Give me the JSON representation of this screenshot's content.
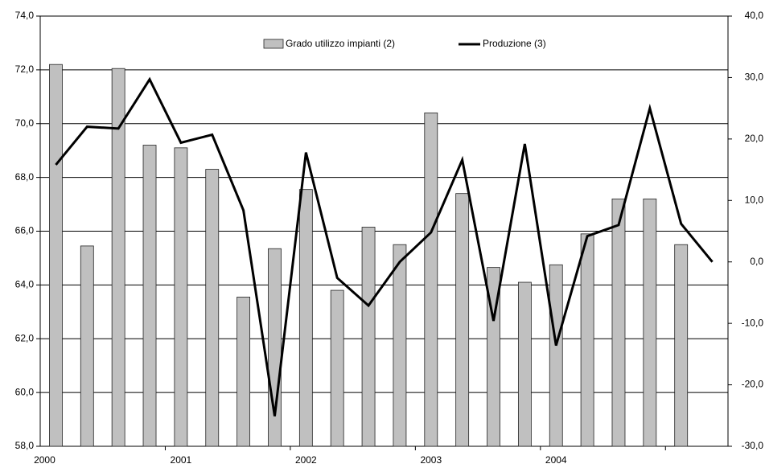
{
  "chart_data": {
    "type": "bar-line",
    "categories": [
      "2000",
      null,
      null,
      null,
      "2001",
      null,
      null,
      null,
      "2002",
      null,
      null,
      null,
      "2003",
      null,
      null,
      null,
      "2004",
      null,
      null,
      null,
      null,
      null
    ],
    "series": [
      {
        "name": "Grado utilizzo impianti (2)",
        "color": "#c0c0c0",
        "type": "bar",
        "values": [
          72.2,
          65.45,
          72.05,
          69.2,
          69.1,
          68.3,
          63.55,
          65.35,
          67.55,
          63.8,
          66.15,
          65.5,
          70.4,
          67.4,
          64.65,
          64.1,
          64.75,
          65.9,
          67.2,
          67.2,
          65.5,
          null
        ]
      },
      {
        "name": "Produzione (3)",
        "color": "#000000",
        "type": "line",
        "axis": "y2",
        "values": [
          15.8,
          22.0,
          21.7,
          29.7,
          19.4,
          20.7,
          8.4,
          -25.1,
          17.8,
          -2.6,
          -7.1,
          0.0,
          4.8,
          16.6,
          -9.6,
          19.2,
          -13.6,
          4.2,
          6.0,
          25.0,
          6.2,
          0.0
        ]
      }
    ],
    "ylim": [
      58,
      74
    ],
    "yticks": [
      {
        "value": 58,
        "label": "58,0"
      },
      {
        "value": 60,
        "label": "60,0"
      },
      {
        "value": 62,
        "label": "62,0"
      },
      {
        "value": 64,
        "label": "64,0"
      },
      {
        "value": 66,
        "label": "66,0"
      },
      {
        "value": 68,
        "label": "68,0"
      },
      {
        "value": 70,
        "label": "70,0"
      },
      {
        "value": 72,
        "label": "72,0"
      },
      {
        "value": 74,
        "label": "74,0"
      }
    ],
    "y2lim": [
      -30,
      40
    ],
    "y2ticks": [
      {
        "value": -30,
        "label": "-30,0"
      },
      {
        "value": -20,
        "label": "-20,0"
      },
      {
        "value": -10,
        "label": "-10,0"
      },
      {
        "value": 0,
        "label": "0,0"
      },
      {
        "value": 10,
        "label": "10,0"
      },
      {
        "value": 20,
        "label": "20,0"
      },
      {
        "value": 30,
        "label": "30,0"
      },
      {
        "value": 40,
        "label": "40,0"
      }
    ],
    "grid": true
  }
}
